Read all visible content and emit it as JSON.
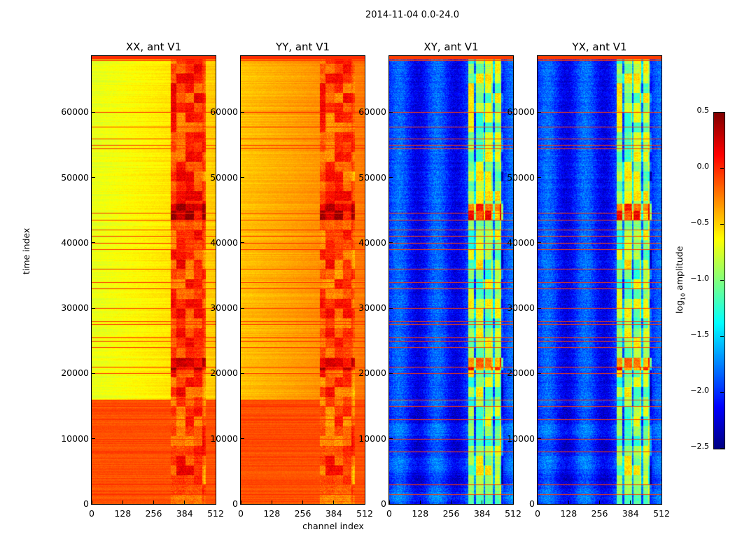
{
  "title": "2014-11-04 0.0-24.0",
  "chart_data": {
    "type": "heatmap",
    "title": "2014-11-04 0.0-24.0",
    "xlabel": "channel index",
    "ylabel": "time index",
    "xlim": [
      0,
      512
    ],
    "ylim": [
      0,
      68600
    ],
    "xticks": [
      0,
      128,
      256,
      384,
      512
    ],
    "yticks": [
      0,
      10000,
      20000,
      30000,
      40000,
      50000,
      60000
    ],
    "panels": [
      {
        "title": "XX, ant V1",
        "base_low": -0.1,
        "base_high": -0.7,
        "bright_channels": -0.05
      },
      {
        "title": "YY, ant V1",
        "base_low": -0.1,
        "base_high": -0.45,
        "bright_channels": -0.1
      },
      {
        "title": "XY, ant V1",
        "base_low": -2.0,
        "base_high": -2.0,
        "bright_channels": -0.9
      },
      {
        "title": "YX, ant V1",
        "base_low": -2.0,
        "base_high": -2.0,
        "bright_channels": -0.9
      }
    ],
    "bright_channel_range": [
      325,
      470
    ],
    "time_breakpoint": 16000,
    "flagged_time_rows": [
      68000,
      60000,
      57800,
      56000,
      55000,
      54500,
      44600,
      43500,
      42000,
      41000,
      40000,
      39000,
      36000,
      34000,
      33000,
      30000,
      28000,
      27500,
      25500,
      25000,
      24000,
      21000,
      20000,
      16000,
      15000,
      13000,
      10000,
      8000,
      3000,
      1500
    ],
    "colorbar": {
      "label": "log10 amplitude",
      "label_main": "log",
      "label_sub": "10",
      "label_rest": " amplitude",
      "colormap": "jet",
      "range": [
        -2.5,
        0.5
      ],
      "ticks": [
        "0.5",
        "0.0",
        "−0.5",
        "−1.0",
        "−1.5",
        "−2.0",
        "−2.5"
      ]
    }
  }
}
